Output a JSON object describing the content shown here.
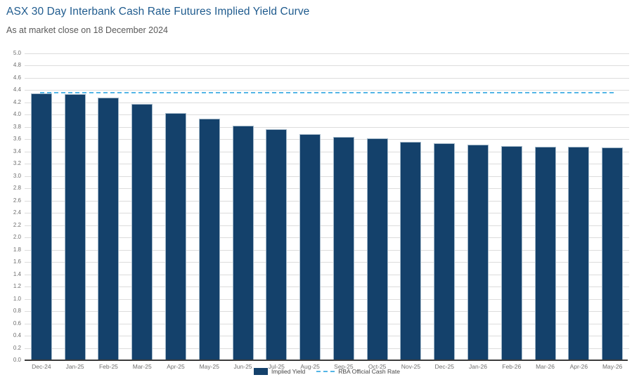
{
  "header": {
    "title": "ASX 30 Day Interbank Cash Rate Futures Implied Yield Curve",
    "subtitle": "As at market close on 18 December 2024"
  },
  "legend": {
    "items": [
      {
        "label": "Implied Yield",
        "marker": "filled-square"
      },
      {
        "label": "RBA Official Cash Rate",
        "marker": "dashed-line"
      }
    ],
    "position": "bottom-center"
  },
  "colors": {
    "title": "#1f5b8e",
    "subtitle": "#595959",
    "bar_fill": "#14416b",
    "bar_border": "#a3b8c9",
    "reference_line": "#55b6e6",
    "gridline": "#dcdcdc",
    "axis_line": "#3c3c3c",
    "tick_label": "#6e6e6e",
    "background": "#ffffff"
  },
  "chart_data": {
    "type": "bar",
    "title": "ASX 30 Day Interbank Cash Rate Futures Implied Yield Curve",
    "subtitle": "As at market close on 18 December 2024",
    "xlabel": "",
    "ylabel": "",
    "categories": [
      "Dec-24",
      "Jan-25",
      "Feb-25",
      "Mar-25",
      "Apr-25",
      "May-25",
      "Jun-25",
      "Jul-25",
      "Aug-25",
      "Sep-25",
      "Oct-25",
      "Nov-25",
      "Dec-25",
      "Jan-26",
      "Feb-26",
      "Mar-26",
      "Apr-26",
      "May-26"
    ],
    "series": [
      {
        "name": "Implied Yield",
        "values": [
          4.34,
          4.33,
          4.27,
          4.17,
          4.02,
          3.93,
          3.82,
          3.76,
          3.68,
          3.64,
          3.61,
          3.56,
          3.53,
          3.51,
          3.49,
          3.47,
          3.48,
          3.46
        ]
      }
    ],
    "reference_line": {
      "name": "RBA Official Cash Rate",
      "value": 4.35,
      "style": "dashed"
    },
    "ylim": [
      0,
      5.0
    ],
    "ytick_step": 0.2,
    "yticks": [
      "0.0",
      "0.2",
      "0.4",
      "0.6",
      "0.8",
      "1.0",
      "1.2",
      "1.4",
      "1.6",
      "1.8",
      "2.0",
      "2.2",
      "2.4",
      "2.6",
      "2.8",
      "3.0",
      "3.2",
      "3.4",
      "3.6",
      "3.8",
      "4.0",
      "4.2",
      "4.4",
      "4.6",
      "4.8",
      "5.0"
    ],
    "grid": "horizontal",
    "legend_position": "bottom"
  }
}
